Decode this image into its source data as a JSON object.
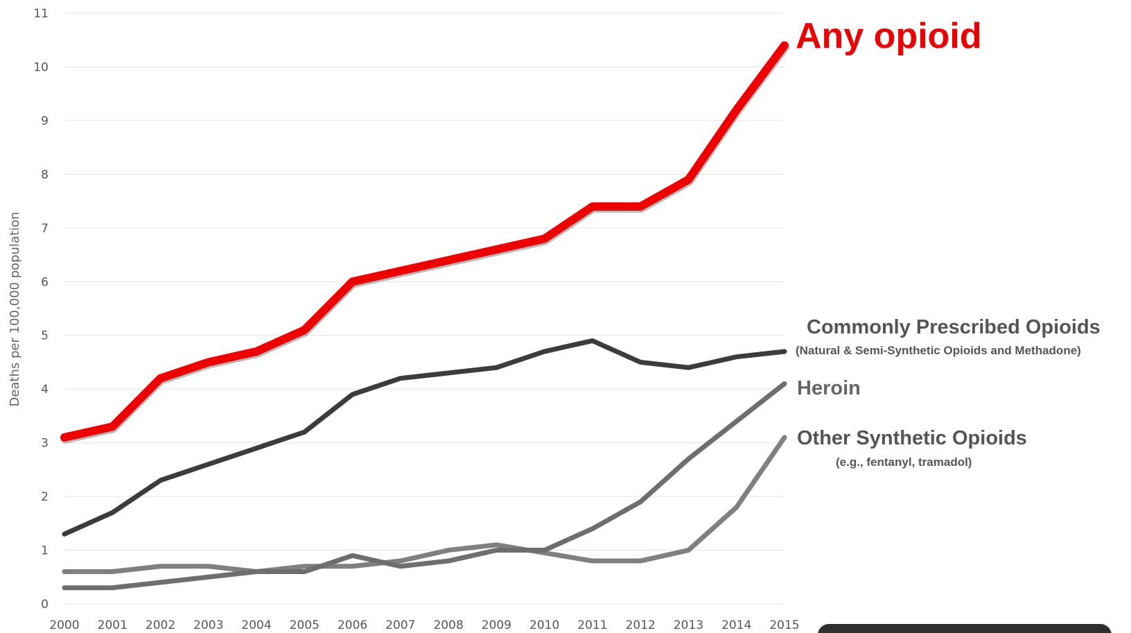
{
  "chart_data": {
    "type": "line",
    "xlabel": "",
    "ylabel": "Deaths per 100,000 population",
    "x": [
      "2000",
      "2001",
      "2002",
      "2003",
      "2004",
      "2005",
      "2006",
      "2007",
      "2008",
      "2009",
      "2010",
      "2011",
      "2012",
      "2013",
      "2014",
      "2015"
    ],
    "yticks": [
      "0",
      "1",
      "2",
      "3",
      "4",
      "5",
      "6",
      "7",
      "8",
      "9",
      "10",
      "11"
    ],
    "ylim": [
      0,
      11
    ],
    "grid": "horizontal",
    "series": [
      {
        "name": "Any opioid",
        "color": "#ee0000",
        "values": [
          3.1,
          3.3,
          4.2,
          4.5,
          4.7,
          5.1,
          6.0,
          6.2,
          6.4,
          6.6,
          6.8,
          7.4,
          7.4,
          7.9,
          9.2,
          10.4
        ]
      },
      {
        "name": "Commonly Prescribed Opioids",
        "subtitle": "(Natural & Semi-Synthetic Opioids and Methadone)",
        "color": "#3c3c3c",
        "values": [
          1.3,
          1.7,
          2.3,
          2.6,
          2.9,
          3.2,
          3.9,
          4.2,
          4.3,
          4.4,
          4.7,
          4.9,
          4.5,
          4.4,
          4.6,
          4.7
        ]
      },
      {
        "name": "Heroin",
        "color": "#6e6e6e",
        "values": [
          0.3,
          0.3,
          0.4,
          0.5,
          0.6,
          0.6,
          0.9,
          0.7,
          0.8,
          1.0,
          1.0,
          1.4,
          1.9,
          2.7,
          3.4,
          4.1
        ]
      },
      {
        "name": "Other Synthetic Opioids",
        "subtitle": "(e.g., fentanyl, tramadol)",
        "color": "#808080",
        "values": [
          0.6,
          0.6,
          0.7,
          0.7,
          0.6,
          0.7,
          0.7,
          0.8,
          1.0,
          1.1,
          0.95,
          0.8,
          0.8,
          1.0,
          1.8,
          3.1
        ]
      }
    ]
  }
}
